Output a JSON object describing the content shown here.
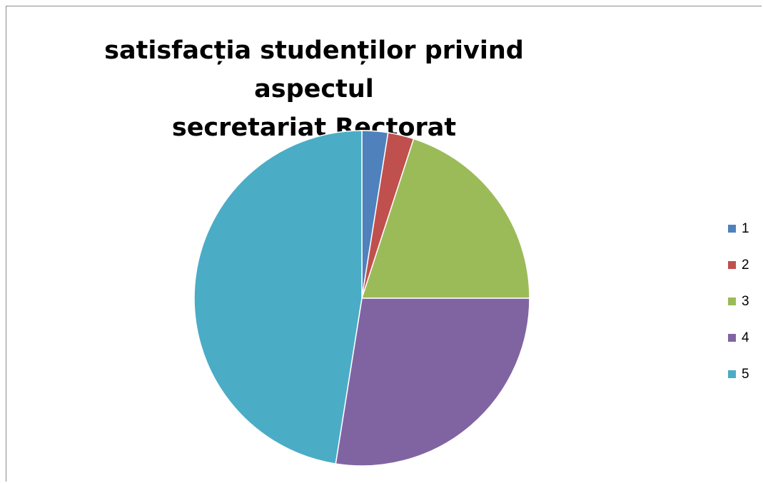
{
  "chart_data": {
    "type": "pie",
    "title": "satisfacția studenților privind aspectul secretariat Rectorat",
    "title_lines": [
      "satisfacția studenților privind aspectul",
      "secretariat Rectorat"
    ],
    "categories": [
      "1",
      "2",
      "3",
      "4",
      "5"
    ],
    "values": [
      2.5,
      2.5,
      20,
      27.5,
      47.5
    ],
    "colors": [
      "#4F81BD",
      "#C0504D",
      "#9BBB59",
      "#8064A2",
      "#4BACC6"
    ],
    "legend_placement": "right"
  }
}
